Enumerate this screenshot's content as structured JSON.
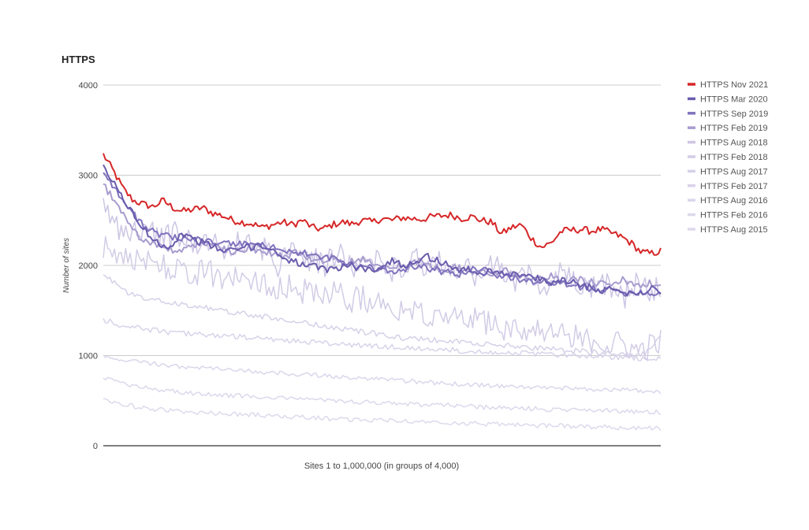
{
  "chart_data": {
    "type": "line",
    "title": "HTTPS",
    "xlabel": "Sites 1 to 1,000,000 (in groups of 4,000)",
    "ylabel": "Number of sites",
    "ylim": [
      0,
      4000
    ],
    "yticks": [
      "0",
      "1000",
      "2000",
      "3000",
      "4000"
    ],
    "grid": true,
    "legend_position": "right",
    "x_groups": 250,
    "series": [
      {
        "name": "HTTPS Nov 2021",
        "color": "#d62728",
        "width": 2,
        "values": [
          3230,
          3050,
          2850,
          2720,
          2680,
          2650,
          2720,
          2640,
          2600,
          2620,
          2640,
          2580,
          2550,
          2500,
          2480,
          2460,
          2420,
          2450,
          2480,
          2450,
          2500,
          2420,
          2400,
          2450,
          2480,
          2460,
          2500,
          2480,
          2520,
          2500,
          2530,
          2520,
          2510,
          2540,
          2550,
          2560,
          2520,
          2540,
          2500,
          2480,
          2350,
          2420,
          2450,
          2300,
          2200,
          2250,
          2380,
          2390,
          2400,
          2380,
          2400,
          2360,
          2320,
          2250,
          2150,
          2130,
          2160
        ]
      },
      {
        "name": "HTTPS Mar 2020",
        "color": "#6a5cad",
        "width": 2,
        "values": [
          3080,
          2900,
          2700,
          2500,
          2350,
          2250,
          2200,
          2350,
          2300,
          2250,
          2200,
          2150,
          2180,
          2200,
          2230,
          2180,
          2100,
          2050,
          2000,
          1980,
          1950,
          1980,
          2000,
          1970,
          1950,
          1990,
          2050,
          2000,
          2050,
          2100,
          2050,
          2000,
          1950,
          1950,
          1900,
          1950,
          1920,
          1900,
          1880,
          1850,
          1800,
          1850,
          1820,
          1780,
          1750,
          1720,
          1750,
          1700,
          1680,
          1750,
          1700
        ]
      },
      {
        "name": "HTTPS Sep 2019",
        "color": "#8073bd",
        "width": 2,
        "values": [
          3050,
          2850,
          2650,
          2500,
          2380,
          2330,
          2300,
          2320,
          2280,
          2260,
          2250,
          2230,
          2250,
          2230,
          2200,
          2180,
          2150,
          2130,
          2100,
          2080,
          2050,
          2000,
          1980,
          1960,
          1950,
          1940,
          2000,
          1980,
          1950,
          1920,
          1900,
          1950,
          1980,
          1900,
          1870,
          1850,
          1830,
          1820,
          1800,
          1780,
          1760,
          1750,
          1740,
          1720,
          1700,
          1710,
          1690,
          1700
        ]
      },
      {
        "name": "HTTPS Feb 2019",
        "color": "#a89ccf",
        "width": 2,
        "values": [
          2900,
          2700,
          2500,
          2300,
          2250,
          2200,
          2150,
          2200,
          2250,
          2220,
          2180,
          2150,
          2200,
          2150,
          2120,
          2100,
          2150,
          2080,
          2050,
          2100,
          2000,
          2080,
          2050,
          2020,
          2000,
          1980,
          2050,
          2000,
          1950,
          1980,
          1950,
          1920,
          1900,
          1950,
          1900,
          1880,
          1850,
          1900,
          1800,
          1850,
          1820,
          1800,
          1780,
          1850,
          1750,
          1800,
          1780
        ]
      },
      {
        "name": "HTTPS Aug 2018",
        "color": "#cdc6e4",
        "width": 1.5,
        "values": [
          2650,
          2450,
          2350,
          2400,
          2380,
          2300,
          2350,
          2250,
          2300,
          2250,
          2150,
          2250,
          2200,
          2180,
          2000,
          2250,
          2150,
          2050,
          2000,
          2150,
          1950,
          2100,
          2050,
          1950,
          2000,
          2100,
          1900,
          2050,
          1950,
          2000,
          1850,
          2000,
          1950,
          1800,
          1900,
          1850,
          1750,
          1900,
          1800,
          1700,
          1800,
          1750,
          1650,
          1800,
          1700,
          1750
        ]
      },
      {
        "name": "HTTPS Feb 2018",
        "color": "#d2cce6",
        "width": 1.5,
        "values": [
          2200,
          2100,
          2150,
          2000,
          2050,
          1950,
          2000,
          1900,
          1950,
          1850,
          1900,
          1800,
          1850,
          1750,
          1800,
          1700,
          1750,
          1650,
          1700,
          1600,
          1650,
          1550,
          1600,
          1500,
          1550,
          1450,
          1500,
          1400,
          1450,
          1350,
          1400,
          1300,
          1350,
          1250,
          1300,
          1200,
          1250,
          1150,
          1200,
          1100,
          1150,
          1050,
          1100,
          1150
        ]
      },
      {
        "name": "HTTPS Aug 2017",
        "color": "#d6d0e8",
        "width": 1.5,
        "values": [
          1900,
          1800,
          1700,
          1650,
          1620,
          1600,
          1580,
          1560,
          1540,
          1520,
          1500,
          1480,
          1460,
          1440,
          1420,
          1400,
          1380,
          1360,
          1340,
          1320,
          1300,
          1280,
          1260,
          1240,
          1220,
          1200,
          1190,
          1180,
          1170,
          1160,
          1150,
          1140,
          1130,
          1120,
          1110,
          1100,
          1090,
          1080,
          1070,
          1060,
          1050,
          1040,
          1030,
          1020,
          1010,
          1000,
          1050,
          1200
        ]
      },
      {
        "name": "HTTPS Feb 2017",
        "color": "#d8d3e9",
        "width": 1.5,
        "values": [
          1400,
          1350,
          1320,
          1300,
          1280,
          1260,
          1250,
          1240,
          1230,
          1220,
          1210,
          1200,
          1190,
          1180,
          1170,
          1160,
          1150,
          1140,
          1130,
          1120,
          1110,
          1100,
          1100,
          1090,
          1080,
          1070,
          1070,
          1060,
          1050,
          1050,
          1040,
          1030,
          1030,
          1020,
          1010,
          1010,
          1000,
          1000,
          990,
          980,
          980,
          970,
          960,
          960
        ]
      },
      {
        "name": "HTTPS Aug 2016",
        "color": "#dbd6eb",
        "width": 1.5,
        "values": [
          980,
          960,
          940,
          920,
          900,
          880,
          870,
          860,
          850,
          840,
          830,
          820,
          810,
          800,
          790,
          780,
          770,
          760,
          750,
          740,
          730,
          720,
          710,
          700,
          690,
          680,
          680,
          670,
          660,
          660,
          650,
          640,
          640,
          630,
          630,
          620,
          620,
          610,
          610,
          600
        ]
      },
      {
        "name": "HTTPS Feb 2016",
        "color": "#dcd8ec",
        "width": 1.5,
        "values": [
          760,
          700,
          650,
          620,
          600,
          580,
          570,
          560,
          550,
          540,
          530,
          520,
          510,
          500,
          490,
          480,
          470,
          460,
          450,
          450,
          440,
          430,
          420,
          420,
          410,
          400,
          400,
          390,
          390,
          380,
          380,
          370
        ]
      },
      {
        "name": "HTTPS Aug 2015",
        "color": "#ded9ec",
        "width": 1.5,
        "values": [
          520,
          460,
          420,
          400,
          380,
          370,
          360,
          350,
          340,
          330,
          320,
          310,
          300,
          290,
          280,
          280,
          270,
          260,
          250,
          250,
          240,
          230,
          230,
          220,
          220,
          210,
          210,
          200,
          200,
          190
        ]
      }
    ]
  }
}
